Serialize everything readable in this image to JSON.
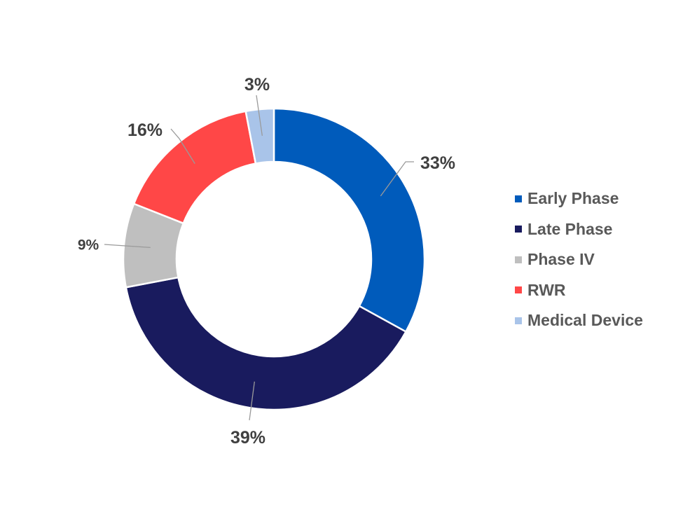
{
  "chart_data": {
    "type": "pie",
    "variant": "donut",
    "title": "",
    "categories": [
      "Early Phase",
      "Late Phase",
      "Phase IV",
      "RWR",
      "Medical Device"
    ],
    "values": [
      33,
      39,
      9,
      16,
      3
    ],
    "value_labels": [
      "33%",
      "39%",
      "9%",
      "16%",
      "3%"
    ],
    "colors": [
      "#005BBB",
      "#191B5E",
      "#BFBFBF",
      "#FF4747",
      "#A9C4E9"
    ],
    "legend": {
      "position": "right",
      "items": [
        {
          "label": "Early Phase",
          "color": "#005BBB"
        },
        {
          "label": "Late Phase",
          "color": "#191B5E"
        },
        {
          "label": "Phase IV",
          "color": "#BFBFBF"
        },
        {
          "label": "RWR",
          "color": "#FF4747"
        },
        {
          "label": "Medical Device",
          "color": "#A9C4E9"
        }
      ]
    },
    "start_angle": "12 o'clock",
    "direction": "clockwise"
  }
}
